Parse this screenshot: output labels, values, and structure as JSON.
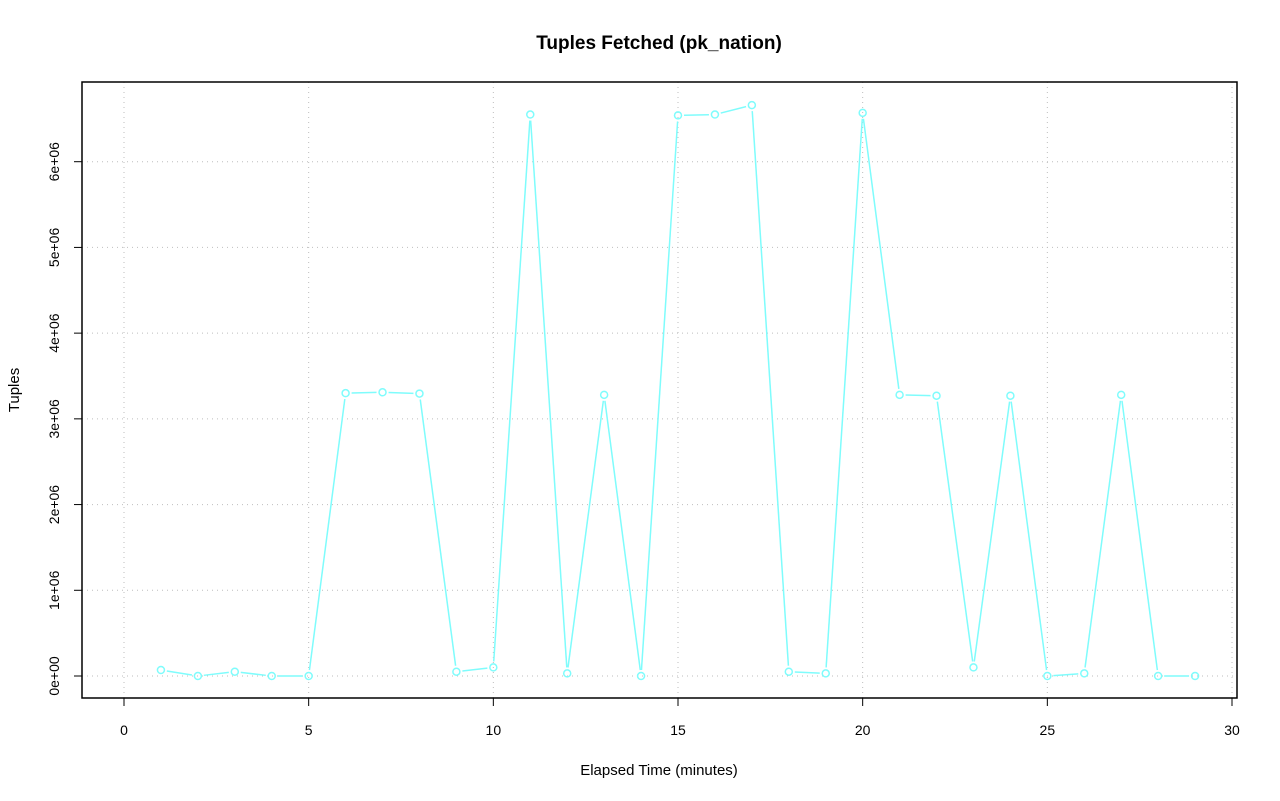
{
  "chart_data": {
    "type": "line",
    "title": "Tuples Fetched (pk_nation)",
    "xlabel": "Elapsed Time (minutes)",
    "ylabel": "Tuples",
    "xlim": [
      0,
      30
    ],
    "ylim": [
      0,
      6600000
    ],
    "x_ticks": [
      0,
      5,
      10,
      15,
      20,
      25,
      30
    ],
    "x_tick_labels": [
      "0",
      "5",
      "10",
      "15",
      "20",
      "25",
      "30"
    ],
    "y_ticks": [
      0,
      1000000,
      2000000,
      3000000,
      4000000,
      5000000,
      6000000
    ],
    "y_tick_labels": [
      "0e+00",
      "1e+06",
      "2e+06",
      "3e+06",
      "4e+06",
      "5e+06",
      "6e+06"
    ],
    "grid": true,
    "series": [
      {
        "color": "#7ffcfc",
        "x": [
          1,
          2,
          3,
          4,
          5,
          6,
          7,
          8,
          9,
          10,
          11,
          12,
          13,
          14,
          15,
          16,
          17,
          18,
          19,
          20,
          21,
          22,
          23,
          24,
          25,
          26,
          27,
          28,
          29
        ],
        "values": [
          70000,
          0,
          50000,
          0,
          0,
          3300000,
          3310000,
          3295000,
          50000,
          100000,
          6550000,
          30000,
          3280000,
          0,
          6540000,
          6550000,
          6660000,
          50000,
          30000,
          6570000,
          3280000,
          3270000,
          100000,
          3270000,
          0,
          30000,
          3280000,
          0,
          0
        ]
      }
    ]
  }
}
